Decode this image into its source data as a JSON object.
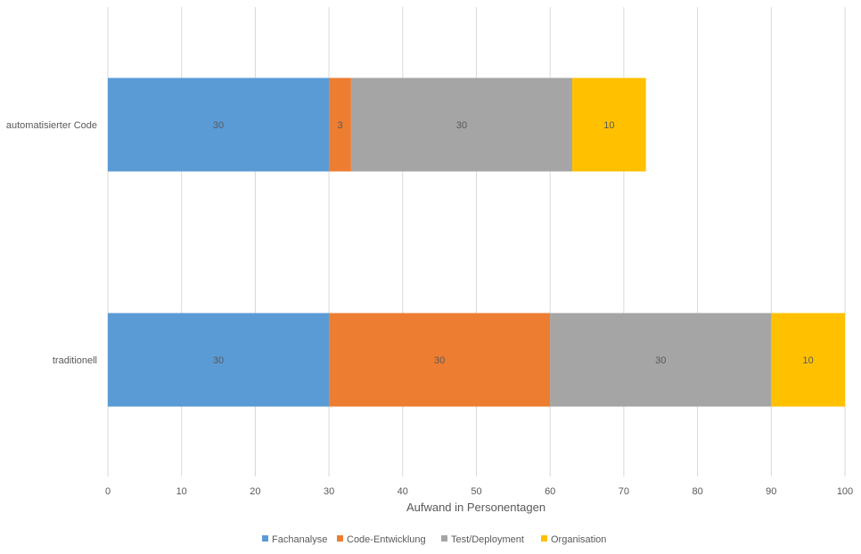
{
  "chart_data": {
    "type": "bar",
    "orientation": "horizontal",
    "stacked": true,
    "title": "",
    "categories": [
      "automatisierter Code",
      "traditionell"
    ],
    "series": [
      {
        "name": "Fachanalyse",
        "values": [
          30,
          30
        ],
        "color": "#5b9bd5"
      },
      {
        "name": "Code-Entwicklung",
        "values": [
          3,
          30
        ],
        "color": "#ed7d31"
      },
      {
        "name": "Test/Deployment",
        "values": [
          30,
          30
        ],
        "color": "#a5a5a5"
      },
      {
        "name": "Organisation",
        "values": [
          10,
          10
        ],
        "color": "#ffc000"
      }
    ],
    "xlabel": "Aufwand in Personentagen",
    "ylabel": "",
    "xlim": [
      0,
      100
    ],
    "xticks": [
      0,
      10,
      20,
      30,
      40,
      50,
      60,
      70,
      80,
      90,
      100
    ],
    "grid": "vertical",
    "data_labels": true,
    "legend": "bottom-center"
  }
}
